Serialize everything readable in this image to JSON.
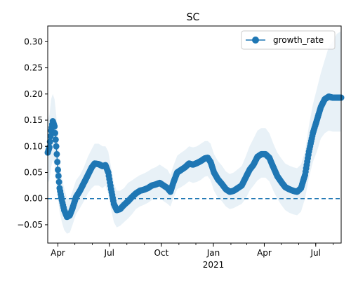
{
  "chart_data": {
    "type": "line",
    "title": "SC",
    "xlabel": "",
    "ylabel": "",
    "xlim": [
      "2020-03-14",
      "2021-08-15"
    ],
    "ylim": [
      -0.085,
      0.33
    ],
    "x_ticks": [
      {
        "date": "2020-04-01",
        "label": "Apr"
      },
      {
        "date": "2020-07-01",
        "label": "Jul"
      },
      {
        "date": "2020-10-01",
        "label": "Oct"
      },
      {
        "date": "2021-01-01",
        "label": "Jan"
      },
      {
        "date": "2021-04-01",
        "label": "Apr"
      },
      {
        "date": "2021-07-01",
        "label": "Jul"
      }
    ],
    "x_year_label": {
      "date": "2021-01-01",
      "label": "2021"
    },
    "y_ticks": [
      -0.05,
      0.0,
      0.05,
      0.1,
      0.15,
      0.2,
      0.25,
      0.3
    ],
    "y_tick_labels": [
      "−0.05",
      "0.00",
      "0.05",
      "0.10",
      "0.15",
      "0.20",
      "0.25",
      "0.30"
    ],
    "reference_line": {
      "y": 0.0,
      "style": "dashed",
      "color": "#1f77b4"
    },
    "legend": {
      "placement": "top-right",
      "entries": [
        "growth_rate"
      ]
    },
    "grid": false,
    "series": [
      {
        "name": "growth_rate",
        "color": "#1f77b4",
        "marker": "circle",
        "band_color": "#1f77b4",
        "band_opacity": 0.1,
        "points": [
          {
            "x": "2020-03-14",
            "y": 0.088,
            "lo": 0.03,
            "hi": 0.15
          },
          {
            "x": "2020-03-17",
            "y": 0.098,
            "lo": 0.035,
            "hi": 0.16
          },
          {
            "x": "2020-03-20",
            "y": 0.13,
            "lo": 0.06,
            "hi": 0.19
          },
          {
            "x": "2020-03-23",
            "y": 0.148,
            "lo": 0.075,
            "hi": 0.2
          },
          {
            "x": "2020-03-26",
            "y": 0.138,
            "lo": 0.065,
            "hi": 0.19
          },
          {
            "x": "2020-03-29",
            "y": 0.1,
            "lo": 0.03,
            "hi": 0.16
          },
          {
            "x": "2020-04-01",
            "y": 0.055,
            "lo": 0.0,
            "hi": 0.11
          },
          {
            "x": "2020-04-04",
            "y": 0.02,
            "lo": -0.025,
            "hi": 0.07
          },
          {
            "x": "2020-04-08",
            "y": -0.003,
            "lo": -0.045,
            "hi": 0.04
          },
          {
            "x": "2020-04-12",
            "y": -0.022,
            "lo": -0.06,
            "hi": 0.02
          },
          {
            "x": "2020-04-17",
            "y": -0.035,
            "lo": -0.067,
            "hi": 0.0
          },
          {
            "x": "2020-04-22",
            "y": -0.032,
            "lo": -0.065,
            "hi": 0.0
          },
          {
            "x": "2020-04-27",
            "y": -0.018,
            "lo": -0.05,
            "hi": 0.015
          },
          {
            "x": "2020-05-03",
            "y": 0.003,
            "lo": -0.03,
            "hi": 0.035
          },
          {
            "x": "2020-05-10",
            "y": 0.015,
            "lo": -0.018,
            "hi": 0.045
          },
          {
            "x": "2020-05-17",
            "y": 0.03,
            "lo": -0.005,
            "hi": 0.06
          },
          {
            "x": "2020-05-24",
            "y": 0.045,
            "lo": 0.01,
            "hi": 0.08
          },
          {
            "x": "2020-05-31",
            "y": 0.06,
            "lo": 0.02,
            "hi": 0.095
          },
          {
            "x": "2020-06-05",
            "y": 0.067,
            "lo": 0.025,
            "hi": 0.105
          },
          {
            "x": "2020-06-12",
            "y": 0.066,
            "lo": 0.025,
            "hi": 0.105
          },
          {
            "x": "2020-06-19",
            "y": 0.062,
            "lo": 0.02,
            "hi": 0.1
          },
          {
            "x": "2020-06-24",
            "y": 0.064,
            "lo": 0.025,
            "hi": 0.1
          },
          {
            "x": "2020-06-29",
            "y": 0.05,
            "lo": 0.01,
            "hi": 0.09
          },
          {
            "x": "2020-07-04",
            "y": 0.018,
            "lo": -0.02,
            "hi": 0.06
          },
          {
            "x": "2020-07-09",
            "y": -0.01,
            "lo": -0.045,
            "hi": 0.03
          },
          {
            "x": "2020-07-14",
            "y": -0.022,
            "lo": -0.055,
            "hi": 0.015
          },
          {
            "x": "2020-07-20",
            "y": -0.02,
            "lo": -0.052,
            "hi": 0.015
          },
          {
            "x": "2020-07-27",
            "y": -0.012,
            "lo": -0.045,
            "hi": 0.02
          },
          {
            "x": "2020-08-03",
            "y": -0.005,
            "lo": -0.038,
            "hi": 0.03
          },
          {
            "x": "2020-08-10",
            "y": 0.003,
            "lo": -0.03,
            "hi": 0.035
          },
          {
            "x": "2020-08-17",
            "y": 0.01,
            "lo": -0.02,
            "hi": 0.04
          },
          {
            "x": "2020-08-24",
            "y": 0.015,
            "lo": -0.015,
            "hi": 0.045
          },
          {
            "x": "2020-08-31",
            "y": 0.017,
            "lo": -0.012,
            "hi": 0.048
          },
          {
            "x": "2020-09-07",
            "y": 0.02,
            "lo": -0.008,
            "hi": 0.052
          },
          {
            "x": "2020-09-14",
            "y": 0.025,
            "lo": -0.003,
            "hi": 0.057
          },
          {
            "x": "2020-09-21",
            "y": 0.027,
            "lo": 0.0,
            "hi": 0.06
          },
          {
            "x": "2020-09-28",
            "y": 0.03,
            "lo": 0.002,
            "hi": 0.065
          },
          {
            "x": "2020-10-05",
            "y": 0.025,
            "lo": -0.005,
            "hi": 0.06
          },
          {
            "x": "2020-10-12",
            "y": 0.02,
            "lo": -0.01,
            "hi": 0.055
          },
          {
            "x": "2020-10-17",
            "y": 0.013,
            "lo": -0.015,
            "hi": 0.045
          },
          {
            "x": "2020-10-22",
            "y": 0.03,
            "lo": 0.0,
            "hi": 0.062
          },
          {
            "x": "2020-10-29",
            "y": 0.05,
            "lo": 0.018,
            "hi": 0.082
          },
          {
            "x": "2020-11-05",
            "y": 0.055,
            "lo": 0.022,
            "hi": 0.088
          },
          {
            "x": "2020-11-12",
            "y": 0.06,
            "lo": 0.027,
            "hi": 0.093
          },
          {
            "x": "2020-11-19",
            "y": 0.067,
            "lo": 0.033,
            "hi": 0.1
          },
          {
            "x": "2020-11-26",
            "y": 0.065,
            "lo": 0.03,
            "hi": 0.098
          },
          {
            "x": "2020-12-03",
            "y": 0.068,
            "lo": 0.032,
            "hi": 0.1
          },
          {
            "x": "2020-12-10",
            "y": 0.072,
            "lo": 0.036,
            "hi": 0.105
          },
          {
            "x": "2020-12-17",
            "y": 0.077,
            "lo": 0.042,
            "hi": 0.11
          },
          {
            "x": "2020-12-22",
            "y": 0.078,
            "lo": 0.043,
            "hi": 0.11
          },
          {
            "x": "2020-12-27",
            "y": 0.07,
            "lo": 0.035,
            "hi": 0.105
          },
          {
            "x": "2021-01-02",
            "y": 0.05,
            "lo": 0.015,
            "hi": 0.085
          },
          {
            "x": "2021-01-09",
            "y": 0.037,
            "lo": 0.002,
            "hi": 0.072
          },
          {
            "x": "2021-01-16",
            "y": 0.028,
            "lo": -0.005,
            "hi": 0.063
          },
          {
            "x": "2021-01-23",
            "y": 0.018,
            "lo": -0.015,
            "hi": 0.052
          },
          {
            "x": "2021-01-30",
            "y": 0.013,
            "lo": -0.02,
            "hi": 0.047
          },
          {
            "x": "2021-02-06",
            "y": 0.015,
            "lo": -0.018,
            "hi": 0.05
          },
          {
            "x": "2021-02-13",
            "y": 0.02,
            "lo": -0.014,
            "hi": 0.056
          },
          {
            "x": "2021-02-20",
            "y": 0.025,
            "lo": -0.01,
            "hi": 0.062
          },
          {
            "x": "2021-02-27",
            "y": 0.04,
            "lo": 0.0,
            "hi": 0.08
          },
          {
            "x": "2021-03-06",
            "y": 0.055,
            "lo": 0.015,
            "hi": 0.1
          },
          {
            "x": "2021-03-13",
            "y": 0.065,
            "lo": 0.025,
            "hi": 0.115
          },
          {
            "x": "2021-03-20",
            "y": 0.08,
            "lo": 0.035,
            "hi": 0.13
          },
          {
            "x": "2021-03-27",
            "y": 0.085,
            "lo": 0.04,
            "hi": 0.135
          },
          {
            "x": "2021-04-03",
            "y": 0.085,
            "lo": 0.04,
            "hi": 0.135
          },
          {
            "x": "2021-04-10",
            "y": 0.078,
            "lo": 0.033,
            "hi": 0.125
          },
          {
            "x": "2021-04-17",
            "y": 0.06,
            "lo": 0.015,
            "hi": 0.105
          },
          {
            "x": "2021-04-24",
            "y": 0.043,
            "lo": 0.0,
            "hi": 0.088
          },
          {
            "x": "2021-05-01",
            "y": 0.032,
            "lo": -0.012,
            "hi": 0.077
          },
          {
            "x": "2021-05-08",
            "y": 0.022,
            "lo": -0.022,
            "hi": 0.067
          },
          {
            "x": "2021-05-15",
            "y": 0.018,
            "lo": -0.027,
            "hi": 0.063
          },
          {
            "x": "2021-05-22",
            "y": 0.015,
            "lo": -0.03,
            "hi": 0.06
          },
          {
            "x": "2021-05-29",
            "y": 0.013,
            "lo": -0.032,
            "hi": 0.058
          },
          {
            "x": "2021-06-05",
            "y": 0.02,
            "lo": -0.025,
            "hi": 0.065
          },
          {
            "x": "2021-06-12",
            "y": 0.045,
            "lo": 0.0,
            "hi": 0.09
          },
          {
            "x": "2021-06-19",
            "y": 0.09,
            "lo": 0.04,
            "hi": 0.14
          },
          {
            "x": "2021-06-26",
            "y": 0.125,
            "lo": 0.07,
            "hi": 0.18
          },
          {
            "x": "2021-07-03",
            "y": 0.15,
            "lo": 0.09,
            "hi": 0.21
          },
          {
            "x": "2021-07-10",
            "y": 0.175,
            "lo": 0.115,
            "hi": 0.24
          },
          {
            "x": "2021-07-17",
            "y": 0.19,
            "lo": 0.125,
            "hi": 0.265
          },
          {
            "x": "2021-07-24",
            "y": 0.195,
            "lo": 0.13,
            "hi": 0.29
          },
          {
            "x": "2021-07-31",
            "y": 0.193,
            "lo": 0.128,
            "hi": 0.3
          },
          {
            "x": "2021-08-07",
            "y": 0.193,
            "lo": 0.128,
            "hi": 0.315
          },
          {
            "x": "2021-08-15",
            "y": 0.193,
            "lo": 0.128,
            "hi": 0.32
          }
        ]
      }
    ]
  }
}
